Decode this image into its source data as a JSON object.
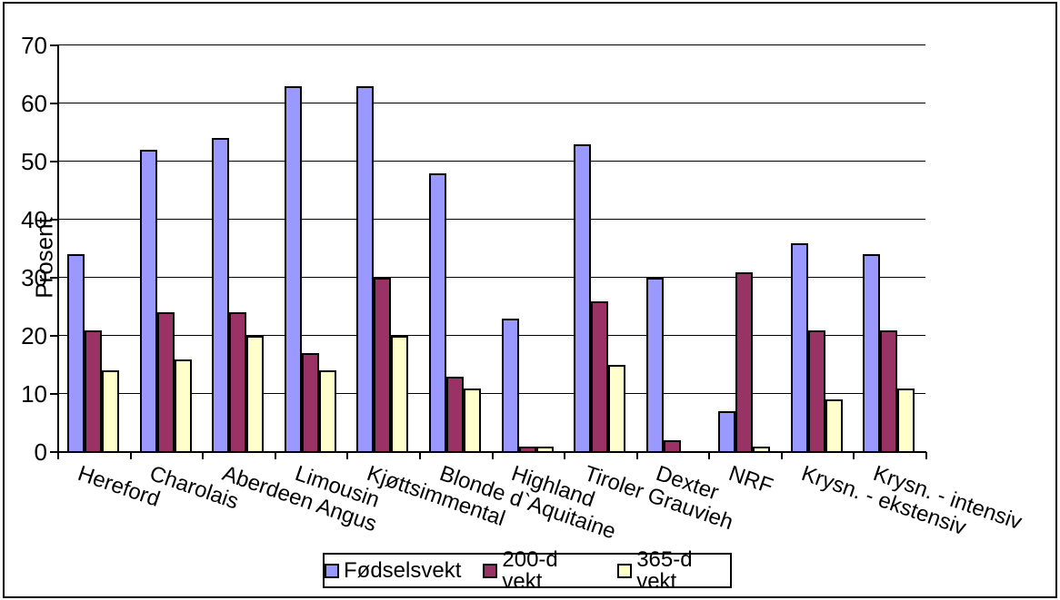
{
  "chart_data": {
    "type": "bar",
    "title": "",
    "xlabel": "",
    "ylabel": "Prosent",
    "ylim": [
      0,
      70
    ],
    "ytick_step": 10,
    "yticks": [
      0,
      10,
      20,
      30,
      40,
      50,
      60,
      70
    ],
    "grid": "horizontal",
    "legend_position": "bottom",
    "categories": [
      "Hereford",
      "Charolais",
      "Aberdeen Angus",
      "Limousin",
      "Kjøttsimmental",
      "Blonde d`Aquitaine",
      "Highland",
      "Tiroler Grauvieh",
      "Dexter",
      "NRF",
      "Krysn. - ekstensiv",
      "Krysn. - intensiv"
    ],
    "series": [
      {
        "name": "Fødselsvekt",
        "color": "#9999FF",
        "values": [
          34,
          52,
          54,
          63,
          63,
          48,
          23,
          53,
          30,
          7,
          36,
          34
        ]
      },
      {
        "name": "200-d vekt",
        "color": "#993366",
        "values": [
          21,
          24,
          24,
          17,
          30,
          13,
          1,
          26,
          2,
          31,
          21,
          21
        ]
      },
      {
        "name": "365-d vekt",
        "color": "#FFFFCC",
        "values": [
          14,
          16,
          20,
          14,
          20,
          11,
          1,
          15,
          0,
          1,
          9,
          11
        ]
      }
    ],
    "colors": {
      "axis": "#000000",
      "bar_border": "#000000",
      "background": "#FFFFFF"
    }
  }
}
